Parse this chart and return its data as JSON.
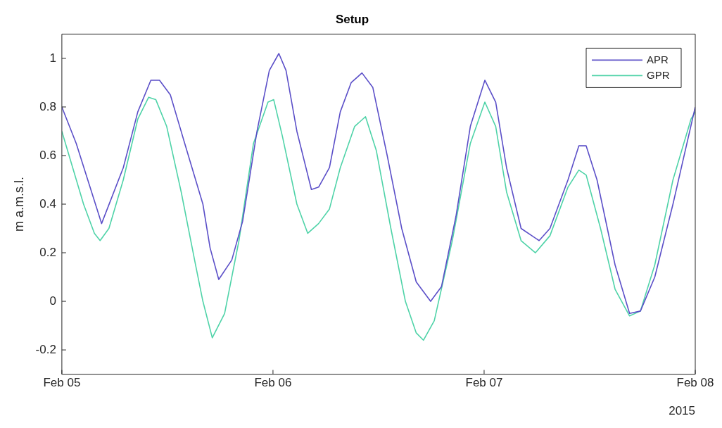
{
  "chart_data": {
    "type": "line",
    "title": "Setup",
    "ylabel": "m a.m.s.l.",
    "annotations": [
      "2015"
    ],
    "xlim": [
      "2015-02-05",
      "2015-02-08"
    ],
    "xticks": [
      {
        "value": "2015-02-05",
        "label": "Feb 05"
      },
      {
        "value": "2015-02-06",
        "label": "Feb 06"
      },
      {
        "value": "2015-02-07",
        "label": "Feb 07"
      },
      {
        "value": "2015-02-08",
        "label": "Feb 08"
      }
    ],
    "ylim": [
      -0.3,
      1.1
    ],
    "yticks": [
      -0.2,
      0,
      0.2,
      0.4,
      0.6,
      0.8,
      1
    ],
    "grid": false,
    "legend": "top right",
    "marker": "none",
    "line_style": "solid",
    "series": [
      {
        "name": "APR",
        "color": "#5b4fc8",
        "x": [
          "2015-02-05T00:00",
          "2015-02-05T01:38",
          "2015-02-05T04:31",
          "2015-02-05T06:59",
          "2015-02-05T08:38",
          "2015-02-05T10:07",
          "2015-02-05T11:06",
          "2015-02-05T12:20",
          "2015-02-05T13:58",
          "2015-02-05T16:02",
          "2015-02-05T16:51",
          "2015-02-05T17:50",
          "2015-02-05T19:19",
          "2015-02-05T20:33",
          "2015-02-05T22:11",
          "2015-02-05T23:35",
          "2015-02-06T00:40",
          "2015-02-06T01:29",
          "2015-02-06T02:43",
          "2015-02-06T04:22",
          "2015-02-06T05:11",
          "2015-02-06T06:25",
          "2015-02-06T07:39",
          "2015-02-06T08:53",
          "2015-02-06T10:07",
          "2015-02-06T11:21",
          "2015-02-06T12:59",
          "2015-02-06T14:38",
          "2015-02-06T16:17",
          "2015-02-06T17:55",
          "2015-02-06T19:09",
          "2015-02-06T20:48",
          "2015-02-06T22:26",
          "2015-02-07T00:05",
          "2015-02-07T01:19",
          "2015-02-07T02:33",
          "2015-02-07T04:12",
          "2015-02-07T06:15",
          "2015-02-07T07:29",
          "2015-02-07T09:32",
          "2015-02-07T10:46",
          "2015-02-07T11:36",
          "2015-02-07T12:50",
          "2015-02-07T14:53",
          "2015-02-07T16:32",
          "2015-02-07T17:46",
          "2015-02-07T19:24",
          "2015-02-07T21:28",
          "2015-02-08T00:00"
        ],
        "values": [
          0.8,
          0.65,
          0.32,
          0.55,
          0.78,
          0.91,
          0.91,
          0.85,
          0.65,
          0.4,
          0.22,
          0.09,
          0.17,
          0.33,
          0.7,
          0.95,
          1.02,
          0.95,
          0.7,
          0.46,
          0.47,
          0.55,
          0.78,
          0.9,
          0.94,
          0.88,
          0.6,
          0.3,
          0.08,
          0,
          0.06,
          0.35,
          0.72,
          0.91,
          0.82,
          0.55,
          0.3,
          0.25,
          0.3,
          0.5,
          0.64,
          0.64,
          0.5,
          0.15,
          -0.05,
          -0.04,
          0.1,
          0.4,
          0.8
        ]
      },
      {
        "name": "GPR",
        "color": "#4fd3a8",
        "x": [
          "2015-02-05T00:00",
          "2015-02-05T01:14",
          "2015-02-05T02:28",
          "2015-02-05T03:42",
          "2015-02-05T04:21",
          "2015-02-05T05:21",
          "2015-02-05T06:59",
          "2015-02-05T08:38",
          "2015-02-05T09:52",
          "2015-02-05T10:41",
          "2015-02-05T11:55",
          "2015-02-05T13:34",
          "2015-02-05T15:12",
          "2015-02-05T16:02",
          "2015-02-05T17:06",
          "2015-02-05T18:30",
          "2015-02-05T20:08",
          "2015-02-05T21:47",
          "2015-02-05T23:26",
          "2015-02-06T00:05",
          "2015-02-06T01:04",
          "2015-02-06T02:43",
          "2015-02-06T03:57",
          "2015-02-06T05:11",
          "2015-02-06T06:25",
          "2015-02-06T07:39",
          "2015-02-06T09:17",
          "2015-02-06T10:31",
          "2015-02-06T11:45",
          "2015-02-06T13:24",
          "2015-02-06T15:03",
          "2015-02-06T16:17",
          "2015-02-06T17:06",
          "2015-02-06T18:20",
          "2015-02-06T20:23",
          "2015-02-06T22:26",
          "2015-02-07T00:05",
          "2015-02-07T01:19",
          "2015-02-07T02:33",
          "2015-02-07T04:12",
          "2015-02-07T05:50",
          "2015-02-07T07:29",
          "2015-02-07T09:32",
          "2015-02-07T10:46",
          "2015-02-07T11:36",
          "2015-02-07T13:14",
          "2015-02-07T14:53",
          "2015-02-07T16:32",
          "2015-02-07T17:46",
          "2015-02-07T19:24",
          "2015-02-07T21:28",
          "2015-02-07T23:31",
          "2015-02-08T00:00"
        ],
        "values": [
          0.7,
          0.55,
          0.4,
          0.28,
          0.25,
          0.3,
          0.5,
          0.75,
          0.84,
          0.83,
          0.72,
          0.45,
          0.15,
          0,
          -0.15,
          -0.05,
          0.25,
          0.65,
          0.82,
          0.83,
          0.68,
          0.4,
          0.28,
          0.32,
          0.38,
          0.55,
          0.72,
          0.76,
          0.62,
          0.3,
          0,
          -0.13,
          -0.16,
          -0.08,
          0.25,
          0.65,
          0.82,
          0.72,
          0.45,
          0.25,
          0.2,
          0.27,
          0.47,
          0.54,
          0.52,
          0.3,
          0.05,
          -0.06,
          -0.04,
          0.15,
          0.5,
          0.75,
          0.78
        ]
      }
    ]
  }
}
